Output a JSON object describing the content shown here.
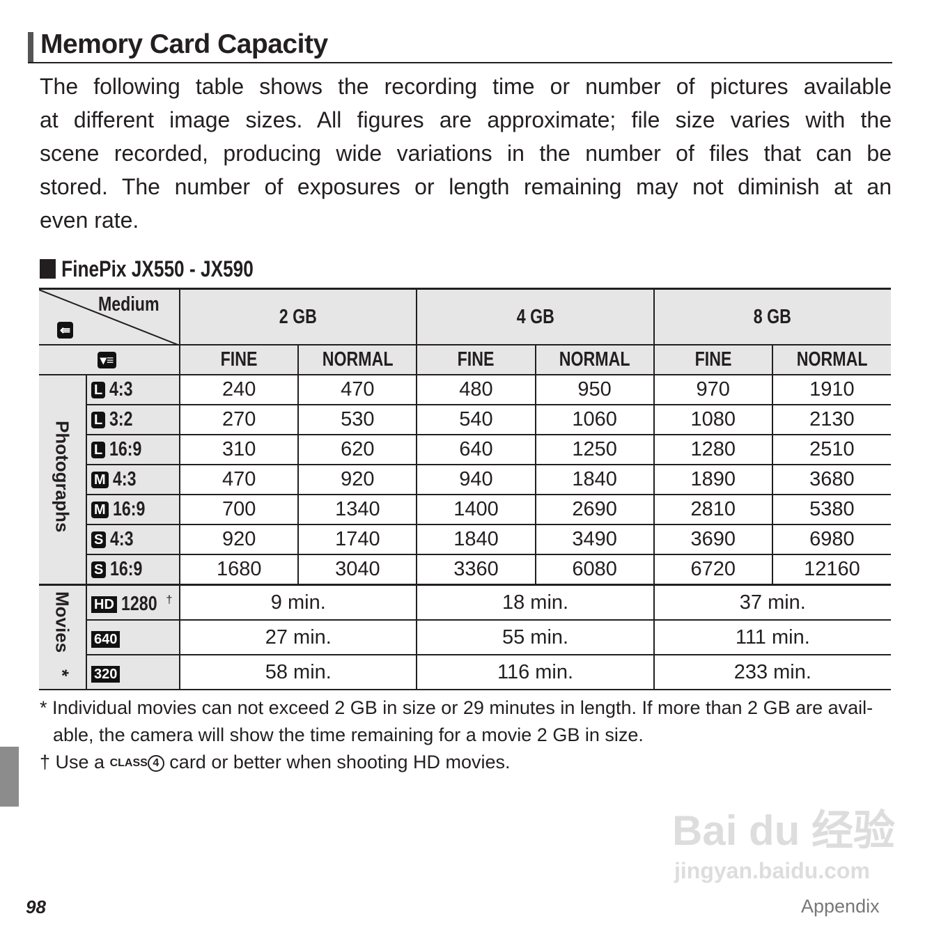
{
  "title": "Memory Card Capacity",
  "paragraph_lines": [
    "The following table shows the recording time or number of pictures available",
    "at different image sizes.  All figures are approximate; file size varies with the",
    "scene recorded, producing wide variations in the number of files that can be",
    "stored.  The number of exposures or length remaining may not diminish at an",
    "even rate."
  ],
  "subheading": "FinePix JX550 - JX590",
  "table": {
    "medium_label": "Medium",
    "media": [
      "2 GB",
      "4 GB",
      "8 GB"
    ],
    "qualities": [
      "FINE",
      "NORMAL",
      "FINE",
      "NORMAL",
      "FINE",
      "NORMAL"
    ],
    "photographs_label": "Photographs",
    "photo_rows": [
      {
        "size": "L",
        "ratio": "4:3",
        "values": [
          "240",
          "470",
          "480",
          "950",
          "970",
          "1910"
        ]
      },
      {
        "size": "L",
        "ratio": "3:2",
        "values": [
          "270",
          "530",
          "540",
          "1060",
          "1080",
          "2130"
        ]
      },
      {
        "size": "L",
        "ratio": "16:9",
        "values": [
          "310",
          "620",
          "640",
          "1250",
          "1280",
          "2510"
        ]
      },
      {
        "size": "M",
        "ratio": "4:3",
        "values": [
          "470",
          "920",
          "940",
          "1840",
          "1890",
          "3680"
        ]
      },
      {
        "size": "M",
        "ratio": "16:9",
        "values": [
          "700",
          "1340",
          "1400",
          "2690",
          "2810",
          "5380"
        ]
      },
      {
        "size": "S",
        "ratio": "4:3",
        "values": [
          "920",
          "1740",
          "1840",
          "3490",
          "3690",
          "6980"
        ]
      },
      {
        "size": "S",
        "ratio": "16:9",
        "values": [
          "1680",
          "3040",
          "3360",
          "6080",
          "6720",
          "12160"
        ]
      }
    ],
    "movies_label": "Movies",
    "movies_mark": "*",
    "movie_rows": [
      {
        "icon": "HD",
        "label": "1280",
        "mark": "†",
        "values": [
          "9 min.",
          "18 min.",
          "37 min."
        ]
      },
      {
        "icon": "640",
        "label": "",
        "mark": "",
        "values": [
          "27 min.",
          "55 min.",
          "111 min."
        ]
      },
      {
        "icon": "320",
        "label": "",
        "mark": "",
        "values": [
          "58 min.",
          "116 min.",
          "233 min."
        ]
      }
    ]
  },
  "footnotes": {
    "star_line1": "* Individual movies can not exceed 2 GB in size or 29 minutes in length. If more than 2 GB are avail-",
    "star_line2": "able, the camera will show the time remaining for a movie 2 GB in size.",
    "dagger_pre": "† Use a ",
    "class_logo": "CLASS",
    "class_num": "4",
    "dagger_post": " card or better when shooting HD movies."
  },
  "page_number": "98",
  "section": "Appendix",
  "watermark": {
    "line1": "Bai du 经验",
    "line2": "jingyan.baidu.com"
  }
}
